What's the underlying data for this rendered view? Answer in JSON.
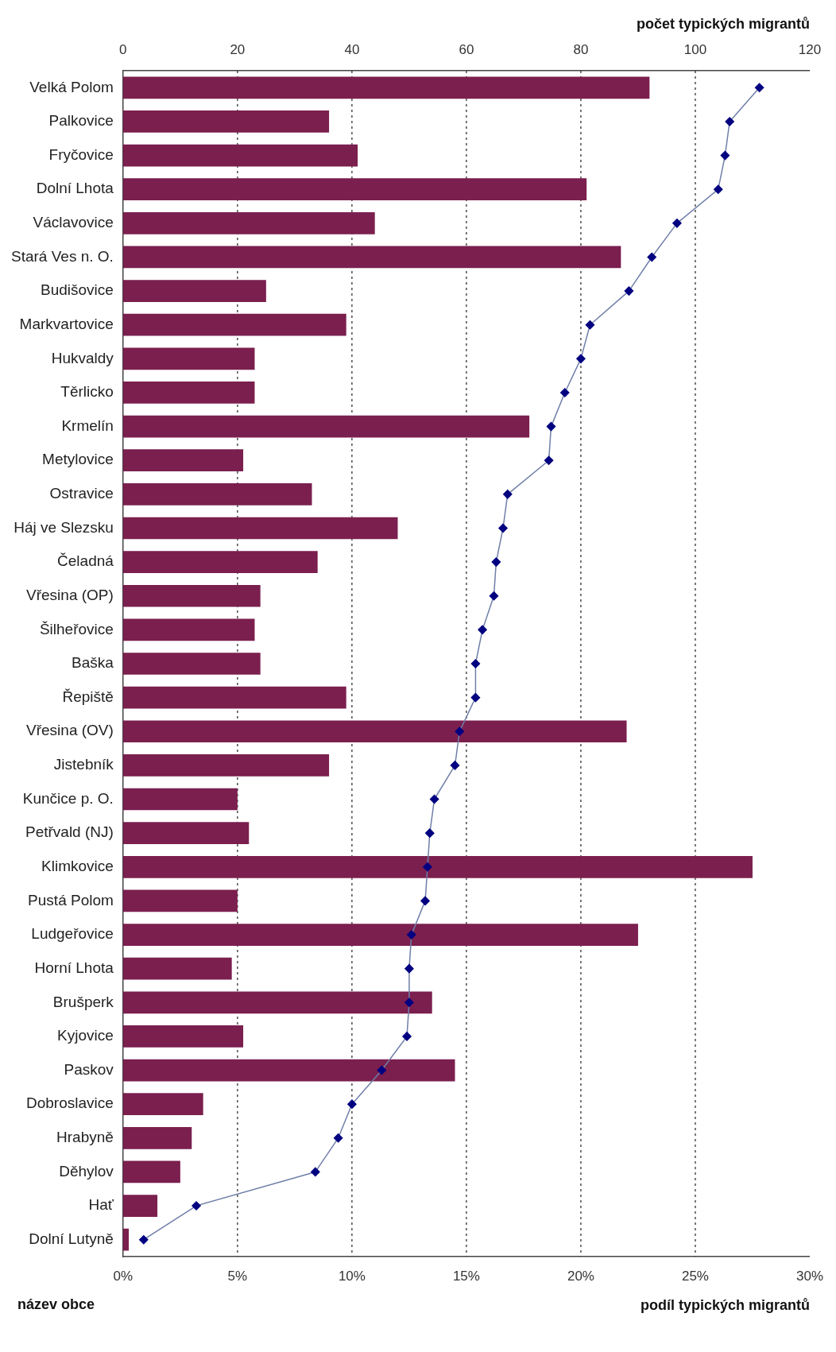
{
  "chart_data": {
    "type": "bar",
    "orientation": "horizontal",
    "xlabel": "podíl typických migrantů",
    "x2label": "počet typických migrantů",
    "ylabel": "název obce",
    "categories": [
      "Velká Polom",
      "Palkovice",
      "Fryčovice",
      "Dolní Lhota",
      "Václavovice",
      "Stará Ves n. O.",
      "Budišovice",
      "Markvartovice",
      "Hukvaldy",
      "Těrlicko",
      "Krmelín",
      "Metylovice",
      "Ostravice",
      "Háj ve Slezsku",
      "Čeladná",
      "Vřesina (OP)",
      "Šilheřovice",
      "Baška",
      "Řepiště",
      "Vřesina (OV)",
      "Jistebník",
      "Kunčice p. O.",
      "Petřvald (NJ)",
      "Klimkovice",
      "Pustá Polom",
      "Ludgeřovice",
      "Horní Lhota",
      "Brušperk",
      "Kyjovice",
      "Paskov",
      "Dobroslavice",
      "Hrabyně",
      "Děhylov",
      "Hať",
      "Dolní Lutyně"
    ],
    "series": [
      {
        "axis": "x2",
        "color": "#7b1f4f",
        "values": [
          92,
          36,
          41,
          81,
          44,
          87,
          25,
          39,
          23,
          23,
          71,
          21,
          33,
          48,
          34,
          24,
          23,
          24,
          39,
          88,
          36,
          20,
          22,
          110,
          20,
          90,
          19,
          54,
          21,
          58,
          14,
          12,
          10,
          6,
          1
        ]
      },
      {
        "type": "line",
        "color": "#000080",
        "marker": "diamond",
        "values": [
          27.8,
          26.5,
          26.3,
          26.0,
          24.2,
          23.1,
          22.1,
          20.4,
          20.0,
          19.3,
          18.7,
          18.6,
          16.8,
          16.6,
          16.3,
          16.2,
          15.7,
          15.4,
          15.4,
          14.7,
          14.5,
          13.6,
          13.4,
          13.3,
          13.2,
          12.6,
          12.5,
          12.5,
          12.4,
          11.3,
          10.0,
          9.4,
          8.4,
          3.2,
          0.9
        ]
      }
    ],
    "xlim": [
      0,
      30
    ],
    "xticks": [
      {
        "value": 0,
        "label": "0%"
      },
      {
        "value": 5,
        "label": "5%"
      },
      {
        "value": 10,
        "label": "10%"
      },
      {
        "value": 15,
        "label": "15%"
      },
      {
        "value": 20,
        "label": "20%"
      },
      {
        "value": 25,
        "label": "25%"
      },
      {
        "value": 30,
        "label": "30%"
      }
    ],
    "x2lim": [
      0,
      120
    ],
    "x2ticks": [
      0,
      20,
      40,
      60,
      80,
      100,
      120
    ],
    "grid": "x",
    "legend": false
  }
}
